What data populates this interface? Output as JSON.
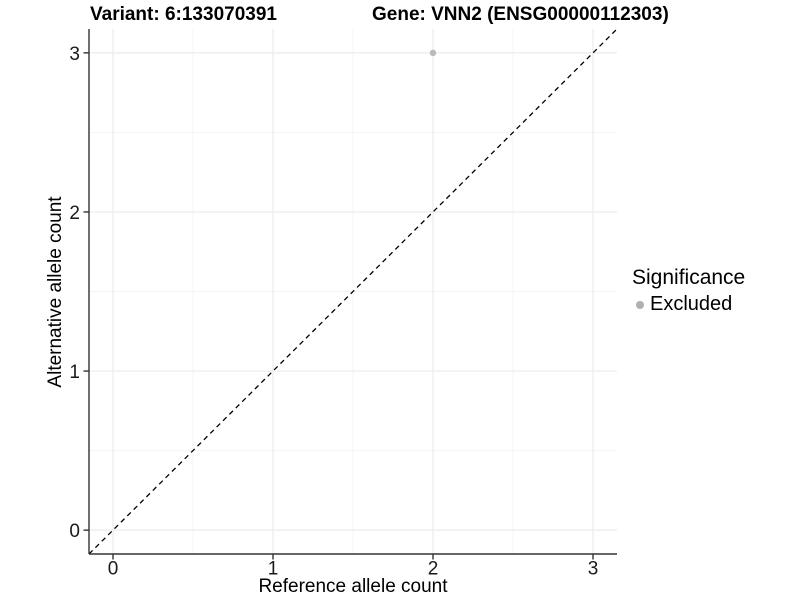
{
  "chart_data": {
    "type": "scatter",
    "title_left": "Variant: 6:133070391",
    "title_right": "Gene: VNN2 (ENSG00000112303)",
    "xlabel": "Reference allele count",
    "ylabel": "Alternative allele count",
    "xlim": [
      -0.15,
      3.15
    ],
    "ylim": [
      -0.15,
      3.15
    ],
    "xticks": [
      0,
      1,
      2,
      3
    ],
    "yticks": [
      0,
      1,
      2,
      3
    ],
    "xticks_minor": [
      0.5,
      1.5,
      2.5
    ],
    "yticks_minor": [
      0.5,
      1.5,
      2.5
    ],
    "grid": "major+minor",
    "points": [
      {
        "x": 2,
        "y": 3,
        "significance": "Excluded"
      }
    ],
    "identity_line": {
      "slope": 1,
      "intercept": 0,
      "style": "dashed",
      "color": "#000000"
    },
    "legend": {
      "title": "Significance",
      "position": "right",
      "entries": [
        {
          "label": "Excluded",
          "color": "#b0b0b0"
        }
      ]
    },
    "colors": {
      "point": "#b9b9b9",
      "grid_major": "#ebebeb",
      "grid_minor": "#f4f4f4",
      "axis_line": "#333333",
      "tick": "#333333"
    }
  }
}
